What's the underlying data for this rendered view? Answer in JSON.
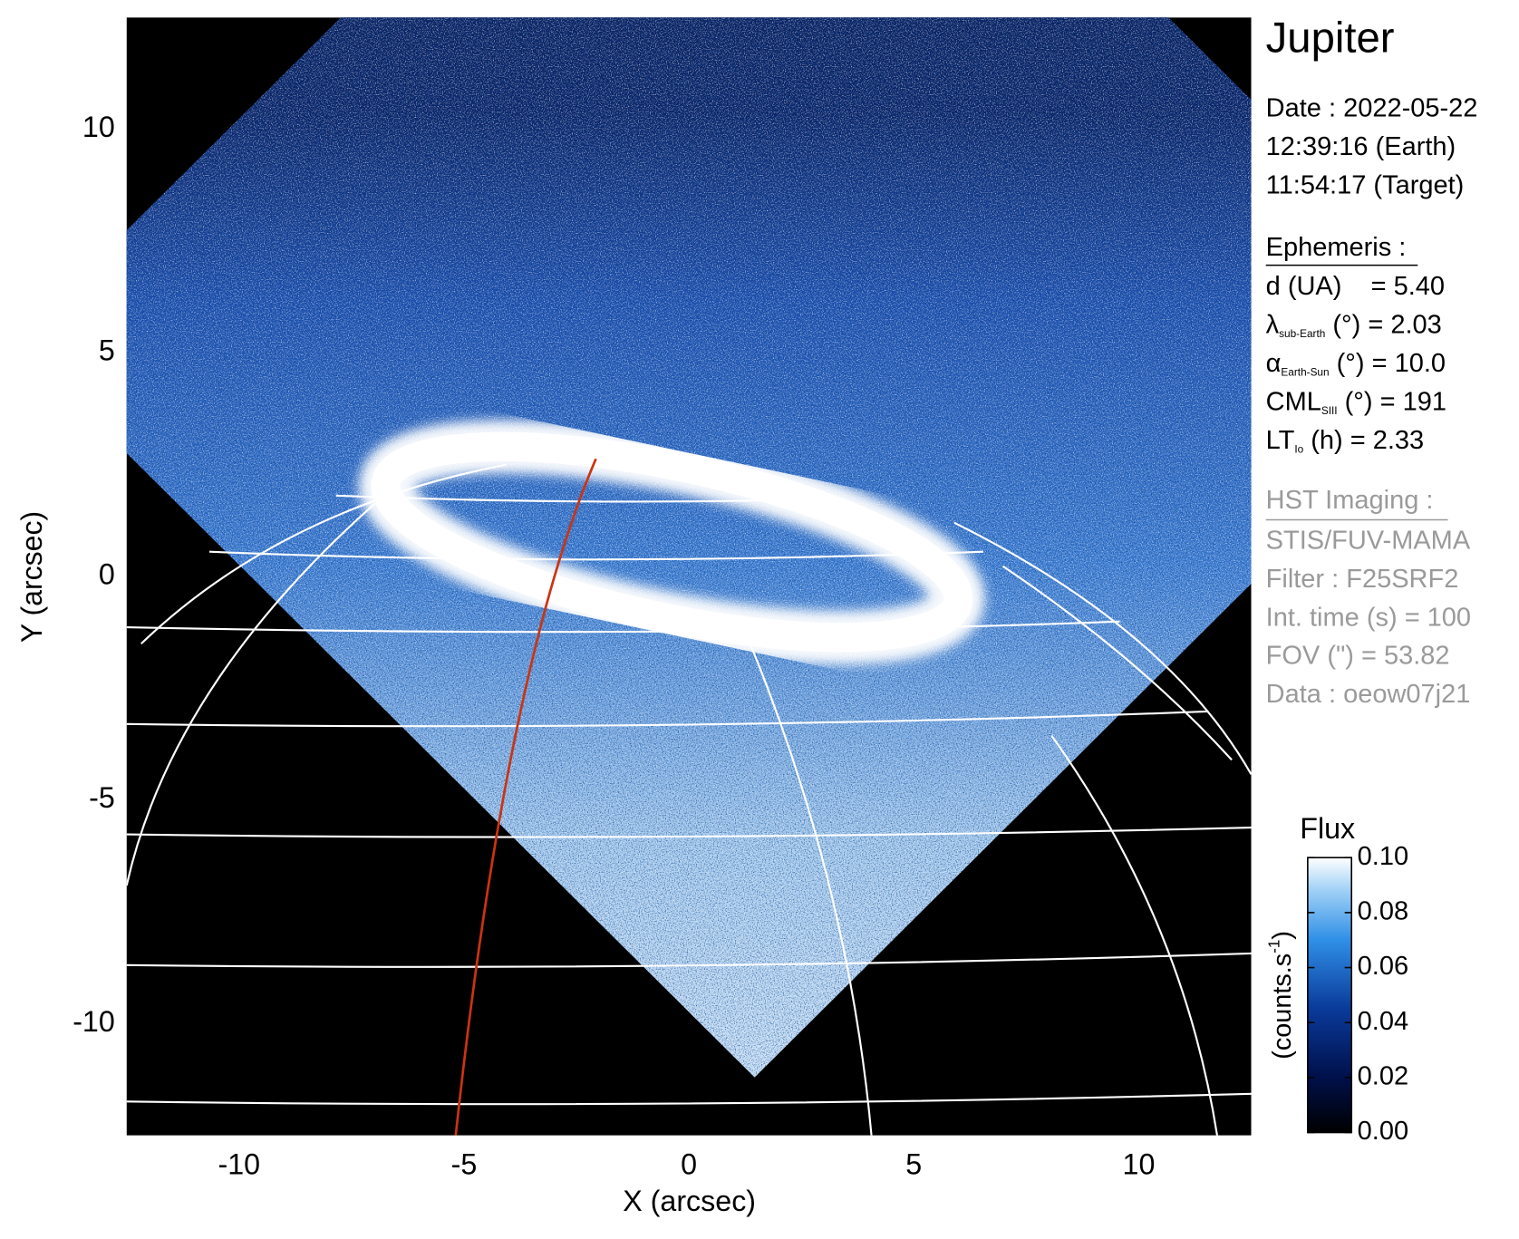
{
  "chart_data": {
    "type": "image",
    "title": "Jupiter",
    "xlabel": "X (arcsec)",
    "ylabel": "Y (arcsec)",
    "xlim": [
      -12.5,
      12.5
    ],
    "ylim": [
      -12.5,
      12.5
    ],
    "xticks": [
      -10,
      -5,
      0,
      5,
      10
    ],
    "yticks": [
      -10,
      -5,
      0,
      5,
      10
    ],
    "colorbar": {
      "title": "Flux",
      "label": [
        "(counts.s",
        "-1",
        ")"
      ],
      "clim": [
        0,
        0.1
      ],
      "ticks": [
        {
          "value": 0,
          "label": "0.00"
        },
        {
          "value": 0.02,
          "label": "0.02"
        },
        {
          "value": 0.04,
          "label": "0.04"
        },
        {
          "value": 0.06,
          "label": "0.06"
        },
        {
          "value": 0.08,
          "label": "0.08"
        },
        {
          "value": 0.1,
          "label": "0.10"
        }
      ]
    },
    "info": {
      "date": [
        "Date : 2022-05-22",
        "12:39:16 (Earth)",
        "11:54:17 (Target)"
      ],
      "ephemeris_title": "Ephemeris :",
      "ephemeris": [
        [
          "d (UA)    = 5.40"
        ],
        [
          "λ",
          "sub-Earth",
          " (°) = 2.03"
        ],
        [
          "α",
          "Earth-Sun",
          " (°) = 10.0"
        ],
        [
          "CML",
          "SIII",
          " (°) = 191"
        ],
        [
          "LT",
          "Io",
          " (h) = 2.33"
        ]
      ],
      "imaging_title": "HST Imaging :",
      "imaging": [
        "STIS/FUV-MAMA",
        "Filter : F25SRF2",
        "Int. time (s) = 100",
        "FOV (\") = 53.82",
        "Data : oeow07j21"
      ]
    }
  }
}
